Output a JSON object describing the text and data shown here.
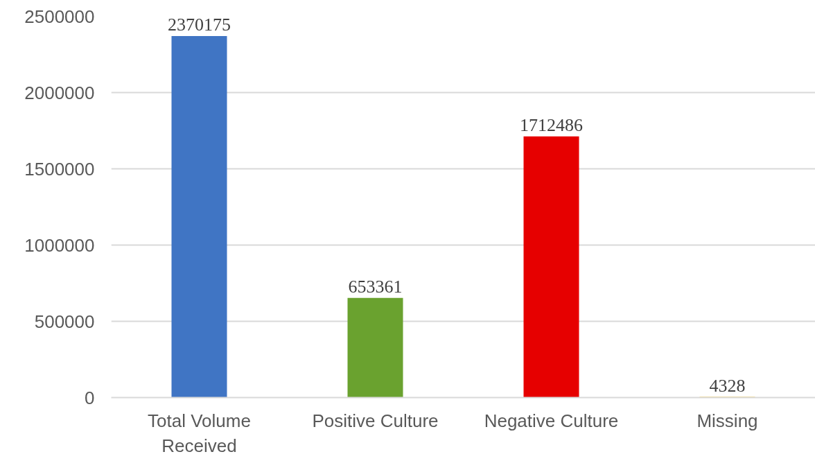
{
  "chart_data": {
    "type": "bar",
    "categories": [
      "Total Volume Received",
      "Positive Culture",
      "Negative Culture",
      "Missing"
    ],
    "values": [
      2370175,
      653361,
      1712486,
      4328
    ],
    "colors": [
      "#4075c4",
      "#6aa22f",
      "#e60000",
      "#ffc000"
    ],
    "ylim": [
      0,
      2500000
    ],
    "yticks": [
      0,
      500000,
      1000000,
      1500000,
      2000000,
      2500000
    ],
    "grid": "y",
    "data_labels": true
  }
}
